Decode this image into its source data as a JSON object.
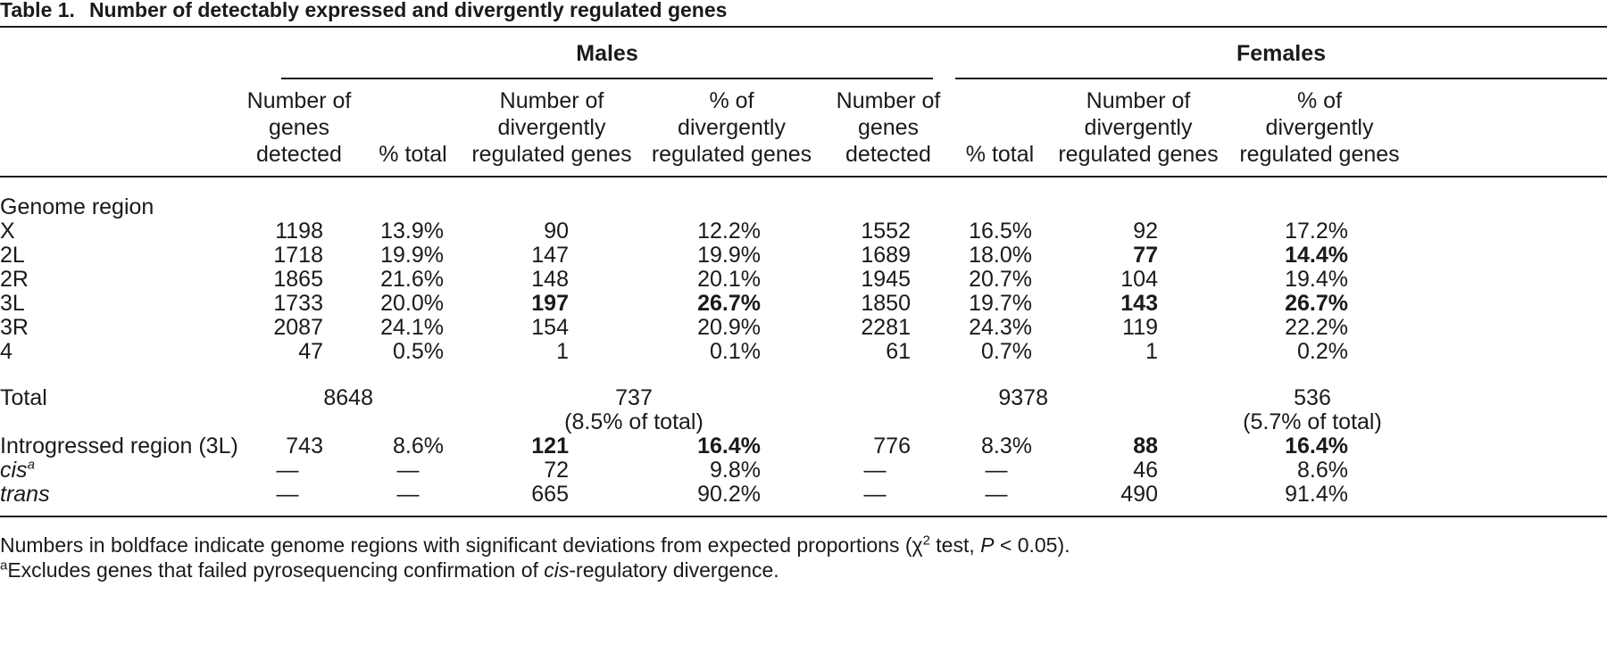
{
  "caption": {
    "label": "Table 1.",
    "title": "Number of detectably expressed and divergently regulated genes"
  },
  "groups": {
    "males": "Males",
    "females": "Females"
  },
  "headers": [
    "Number of\ngenes\ndetected",
    "% total",
    "Number of\ndivergently\nregulated genes",
    "% of\ndivergently\nregulated genes",
    "Number of\ngenes\ndetected",
    "% total",
    "Number of\ndivergently\nregulated genes",
    "% of\ndivergently\nregulated genes"
  ],
  "section_label": "Genome region",
  "regions": [
    {
      "label": "X",
      "cells": [
        "1198",
        "13.9%",
        "90",
        "12.2%",
        "1552",
        "16.5%",
        "92",
        "17.2%"
      ],
      "bold": []
    },
    {
      "label": "2L",
      "cells": [
        "1718",
        "19.9%",
        "147",
        "19.9%",
        "1689",
        "18.0%",
        "77",
        "14.4%"
      ],
      "bold": [
        6,
        7
      ]
    },
    {
      "label": "2R",
      "cells": [
        "1865",
        "21.6%",
        "148",
        "20.1%",
        "1945",
        "20.7%",
        "104",
        "19.4%"
      ],
      "bold": []
    },
    {
      "label": "3L",
      "cells": [
        "1733",
        "20.0%",
        "197",
        "26.7%",
        "1850",
        "19.7%",
        "143",
        "26.7%"
      ],
      "bold": [
        2,
        3,
        6,
        7
      ]
    },
    {
      "label": "3R",
      "cells": [
        "2087",
        "24.1%",
        "154",
        "20.9%",
        "2281",
        "24.3%",
        "119",
        "22.2%"
      ],
      "bold": []
    },
    {
      "label": "4",
      "cells": [
        "47",
        "0.5%",
        "1",
        "0.1%",
        "61",
        "0.7%",
        "1",
        "0.2%"
      ],
      "bold": []
    }
  ],
  "total": {
    "label": "Total",
    "males_detected": "8648",
    "males_divergent": "737",
    "males_divergent_pct": "(8.5% of total)",
    "females_detected": "9378",
    "females_divergent": "536",
    "females_divergent_pct": "(5.7% of total)"
  },
  "extra_rows": [
    {
      "label": "Introgressed region (3L)",
      "sup": "",
      "italic": false,
      "cells": [
        "743",
        "8.6%",
        "121",
        "16.4%",
        "776",
        "8.3%",
        "88",
        "16.4%"
      ],
      "bold": [
        2,
        3,
        6,
        7
      ]
    },
    {
      "label": "cis",
      "sup": "a",
      "italic": true,
      "cells": [
        "—",
        "—",
        "72",
        "9.8%",
        "—",
        "—",
        "46",
        "8.6%"
      ],
      "bold": []
    },
    {
      "label": "trans",
      "sup": "",
      "italic": true,
      "cells": [
        "—",
        "—",
        "665",
        "90.2%",
        "—",
        "—",
        "490",
        "91.4%"
      ],
      "bold": []
    }
  ],
  "footnotes": {
    "line1_a": "Numbers in boldface indicate genome regions with significant deviations from expected proportions (χ",
    "line1_sup": "2",
    "line1_b": " test, ",
    "line1_p": "P",
    "line1_c": " < 0.05).",
    "line2_sup": "a",
    "line2_a": "Excludes genes that failed pyrosequencing confirmation of ",
    "line2_it": "cis",
    "line2_b": "-regulatory divergence."
  }
}
